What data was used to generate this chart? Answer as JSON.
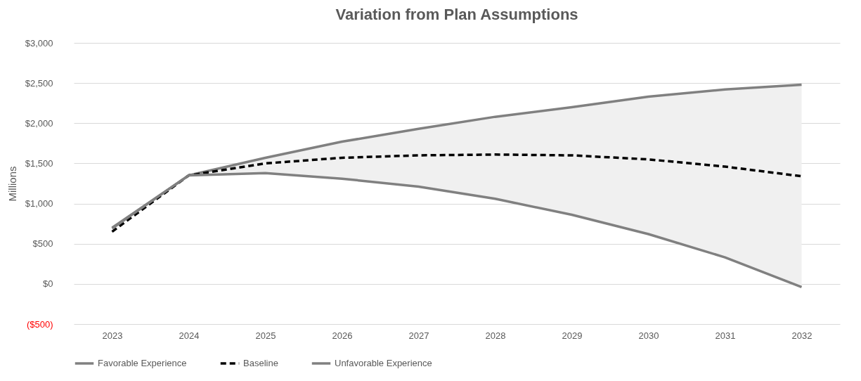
{
  "chart_data": {
    "type": "line",
    "title": "Variation from Plan Assumptions",
    "ylabel": "Millions",
    "categories": [
      "2023",
      "2024",
      "2025",
      "2026",
      "2027",
      "2028",
      "2029",
      "2030",
      "2031",
      "2032"
    ],
    "series": [
      {
        "name": "Favorable Experience",
        "color": "#808080",
        "line_style": "solid",
        "values": [
          700,
          1350,
          1570,
          1770,
          1930,
          2080,
          2200,
          2330,
          2420,
          2480
        ]
      },
      {
        "name": "Baseline",
        "color": "#000000",
        "line_style": "dashed",
        "values": [
          650,
          1350,
          1500,
          1570,
          1600,
          1610,
          1600,
          1550,
          1460,
          1340
        ],
        "lower": [
          null,
          1350,
          1380,
          1310,
          1210,
          1060,
          860,
          620,
          330,
          -40
        ],
        "upper": [
          null,
          1350,
          1570,
          1770,
          1930,
          2080,
          2200,
          2330,
          2420,
          2480
        ]
      },
      {
        "name": "Unfavorable Experience",
        "color": "#808080",
        "line_style": "solid",
        "values": [
          690,
          1350,
          1380,
          1310,
          1210,
          1060,
          860,
          620,
          330,
          -40
        ]
      }
    ],
    "ylim": [
      -500,
      3000
    ],
    "yticks": [
      {
        "value": -500,
        "label": "($500)"
      },
      {
        "value": 0,
        "label": "$0"
      },
      {
        "value": 500,
        "label": "$500"
      },
      {
        "value": 1000,
        "label": "$1,000"
      },
      {
        "value": 1500,
        "label": "$1,500"
      },
      {
        "value": 2000,
        "label": "$2,000"
      },
      {
        "value": 2500,
        "label": "$2,500"
      },
      {
        "value": 3000,
        "label": "$3,000"
      }
    ],
    "grid": "y",
    "legend": "bottom"
  }
}
